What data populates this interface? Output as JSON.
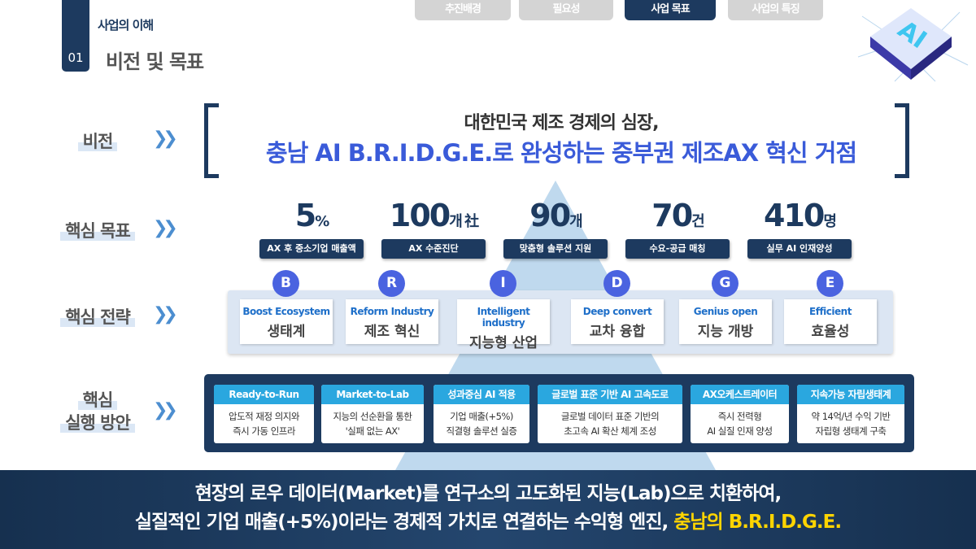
{
  "header": {
    "section_number": "01",
    "section": "사업의 이해",
    "title": "비전 및 목표"
  },
  "tabs": [
    {
      "label": "추진배경",
      "active": false
    },
    {
      "label": "필요성",
      "active": false
    },
    {
      "label": "사업 목표",
      "active": true
    },
    {
      "label": "사업의 특징",
      "active": false
    }
  ],
  "logo": {
    "text": "AI"
  },
  "rows": {
    "vision": "비전",
    "targets": "핵심 목표",
    "strategy": "핵심 전략",
    "action_line1": "핵심",
    "action_line2": "실행 방안"
  },
  "vision": {
    "line1": "대한민국 제조 경제의 심장,",
    "line2": "충남 AI B.R.I.D.G.E.로 완성하는 중부권 제조AX 혁신 거점"
  },
  "targets": [
    {
      "num": "5",
      "unit": "%",
      "label": "AX 후 중소기업 매출액"
    },
    {
      "num": "100",
      "unit": "개 社",
      "label": "AX 수준진단"
    },
    {
      "num": "90",
      "unit": "개",
      "label": "맞춤형 솔루션 지원"
    },
    {
      "num": "70",
      "unit": "건",
      "label": "수요-공급 매칭"
    },
    {
      "num": "410",
      "unit": "명",
      "label": "실무 AI 인재양성"
    }
  ],
  "strategies": [
    {
      "letter": "B",
      "en": "Boost Ecosystem",
      "ko": "생태계"
    },
    {
      "letter": "R",
      "en": "Reform Industry",
      "ko": "제조 혁신"
    },
    {
      "letter": "I",
      "en": "Intelligent industry",
      "ko": "지능형 산업"
    },
    {
      "letter": "D",
      "en": "Deep convert",
      "ko": "교차 융합"
    },
    {
      "letter": "G",
      "en": "Genius open",
      "ko": "지능 개방"
    },
    {
      "letter": "E",
      "en": "Efficient",
      "ko": "효율성"
    }
  ],
  "actions": [
    {
      "title": "Ready-to-Run",
      "l1": "압도적 재정 의지와",
      "l2": "즉시 가동 인프라"
    },
    {
      "title": "Market-to-Lab",
      "l1": "지능의 선순환을 통한",
      "l2": "'실패 없는 AX'"
    },
    {
      "title": "성과중심 AI 적용",
      "l1": "기업 매출(+5%)",
      "l2": "직결형 솔루션 실증"
    },
    {
      "title": "글로벌 표준 기반 AI 고속도로",
      "l1": "글로벌 데이터 표준 기반의",
      "l2": "초고속 AI 확산 체계 조성"
    },
    {
      "title": "AX오케스트레이터",
      "l1": "즉시 전력형",
      "l2": "AI 실질 인재 양성"
    },
    {
      "title": "지속가능 자립생태계",
      "l1": "약 14억/년 수익 기반",
      "l2": "자립형 생태계 구축"
    }
  ],
  "bottom": {
    "line1": "현장의 로우 데이터(Market)를 연구소의 고도화된 지능(Lab)으로 치환하여,",
    "line2": "실질적인 기업 매출(+5%)이라는 경제적 가치로 연결하는 수익형 엔진,",
    "highlight": "충남의 B.R.I.D.G.E."
  },
  "colors": {
    "navy": "#1d3a5f",
    "accent_blue": "#3a5bd9",
    "cyan": "#2aa7df",
    "highlight": "#ffd400"
  }
}
